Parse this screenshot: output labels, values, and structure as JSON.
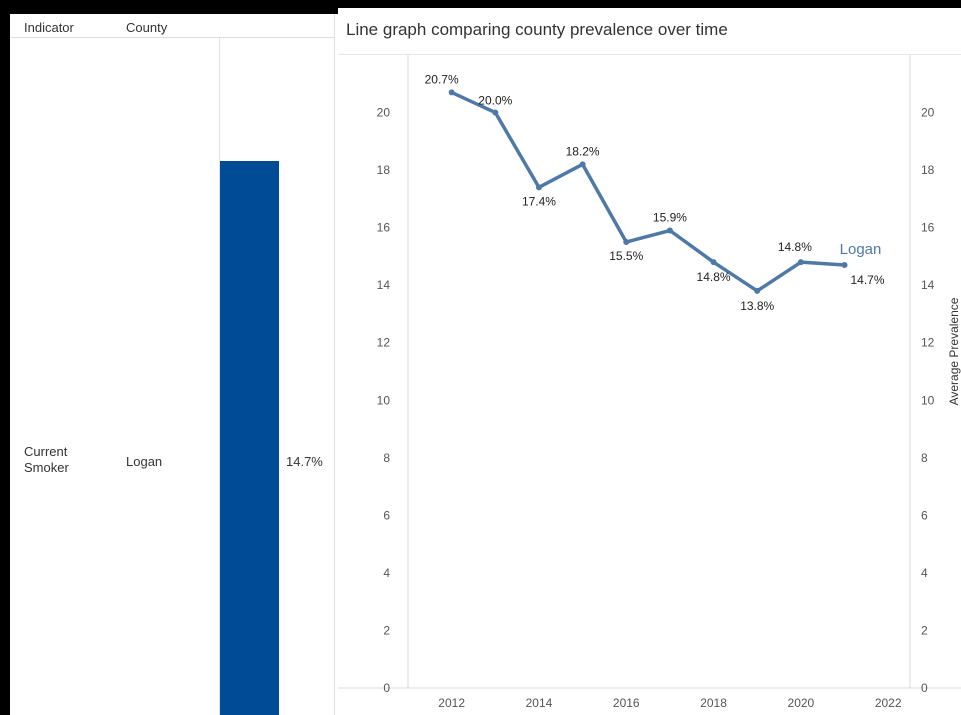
{
  "table": {
    "header_indicator": "Indicator",
    "header_county": "County",
    "row": {
      "indicator": "Current Smoker",
      "county": "Logan",
      "value": 14.7,
      "value_label": "14.7%"
    },
    "bar_color": "#004b96"
  },
  "chart_title": "Line graph comparing county prevalence over time",
  "chart_data": {
    "type": "line",
    "title": "",
    "ylabel": "Average Prevalence",
    "xlim": [
      2011,
      2022.5
    ],
    "ylim": [
      0,
      22
    ],
    "x_ticks": [
      2012,
      2014,
      2016,
      2018,
      2020,
      2022
    ],
    "y_ticks": [
      0,
      2,
      4,
      6,
      8,
      10,
      12,
      14,
      16,
      18,
      20
    ],
    "grid": false,
    "series": [
      {
        "name": "Logan",
        "color": "#4e79a7",
        "x": [
          2012,
          2013,
          2014,
          2015,
          2016,
          2017,
          2018,
          2019,
          2020,
          2021
        ],
        "values": [
          20.7,
          20.0,
          17.4,
          18.2,
          15.5,
          15.9,
          14.8,
          13.8,
          14.8,
          14.7
        ],
        "labels": [
          "20.7%",
          "20.0%",
          "17.4%",
          "18.2%",
          "15.5%",
          "15.9%",
          "14.8%",
          "13.8%",
          "14.8%",
          "14.7%"
        ]
      }
    ]
  }
}
